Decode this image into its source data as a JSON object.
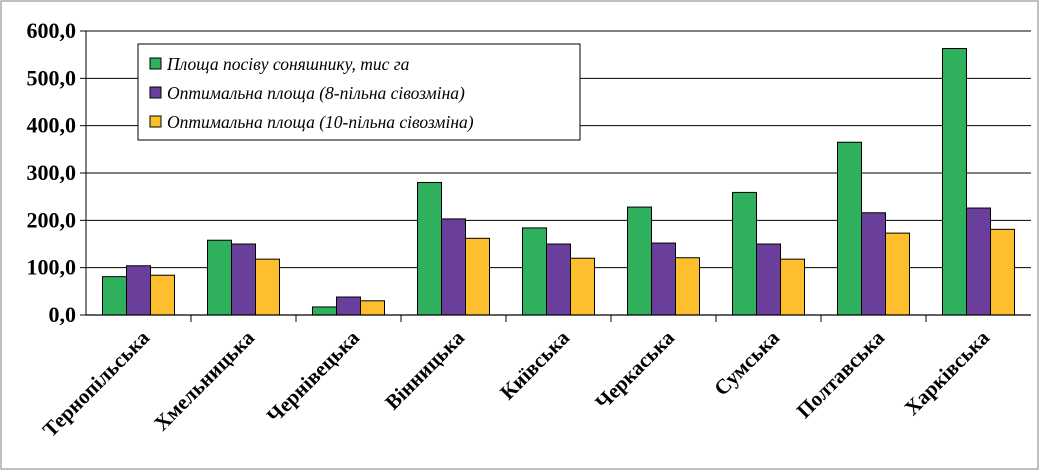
{
  "chart_data": {
    "type": "bar",
    "title": "",
    "xlabel": "",
    "ylabel": "",
    "ylim": [
      0,
      600
    ],
    "yticks": [
      "0,0",
      "100,0",
      "200,0",
      "300,0",
      "400,0",
      "500,0",
      "600,0"
    ],
    "grid": true,
    "legend_position": "top-left",
    "categories": [
      "Тернопільська",
      "Хмельницька",
      "Чернівецька",
      "Вінницька",
      "Київська",
      "Черкаська",
      "Сумська",
      "Полтавська",
      "Харківська"
    ],
    "series": [
      {
        "name": "Площа посіву соняшнику, тис га",
        "color": "#2fb05c",
        "values": [
          81,
          158,
          17,
          280,
          184,
          228,
          259,
          365,
          563
        ]
      },
      {
        "name": "Оптимальна площа (8-пільна сівозміна)",
        "color": "#6a3f9c",
        "values": [
          104,
          150,
          38,
          203,
          150,
          152,
          150,
          216,
          226
        ]
      },
      {
        "name": "Оптимальна площа (10-пільна сівозміна)",
        "color": "#fdbf2d",
        "values": [
          84,
          118,
          30,
          162,
          120,
          121,
          118,
          173,
          181
        ]
      }
    ]
  }
}
